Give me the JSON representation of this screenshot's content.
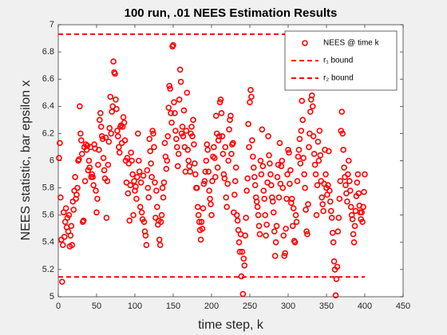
{
  "chart_data": {
    "type": "scatter",
    "title": "100 run, .01 NEES Estimation Results",
    "xlabel": "time step, k",
    "ylabel": "NEES statistic, bar epsilon x",
    "xlim": [
      0,
      450
    ],
    "xticks": [
      0,
      50,
      100,
      150,
      200,
      250,
      300,
      350,
      400,
      450
    ],
    "ylim": [
      5,
      7
    ],
    "yticks": [
      5,
      5.2,
      5.4,
      5.6,
      5.8,
      6,
      6.2,
      6.4,
      6.6,
      6.8,
      7
    ],
    "legend": "northeast",
    "series": [
      {
        "name": "NEES @ time k",
        "type": "scatter",
        "color": "#ff0000",
        "x": [
          1,
          2,
          3,
          4,
          5,
          6,
          7,
          8,
          9,
          10,
          11,
          12,
          13,
          14,
          15,
          16,
          17,
          18,
          19,
          20,
          21,
          22,
          23,
          24,
          25,
          26,
          27,
          28,
          29,
          30,
          31,
          32,
          33,
          34,
          35,
          36,
          37,
          38,
          39,
          40,
          41,
          42,
          43,
          44,
          45,
          46,
          47,
          48,
          49,
          50,
          51,
          52,
          53,
          54,
          55,
          56,
          57,
          58,
          59,
          60,
          61,
          62,
          63,
          64,
          65,
          66,
          67,
          68,
          69,
          70,
          71,
          72,
          73,
          74,
          75,
          76,
          77,
          78,
          79,
          80,
          81,
          82,
          83,
          84,
          85,
          86,
          87,
          88,
          89,
          90,
          91,
          92,
          93,
          94,
          95,
          96,
          97,
          98,
          99,
          100,
          101,
          102,
          103,
          104,
          105,
          106,
          107,
          108,
          109,
          110,
          111,
          112,
          113,
          114,
          115,
          116,
          117,
          118,
          119,
          120,
          121,
          122,
          123,
          124,
          125,
          126,
          127,
          128,
          129,
          130,
          131,
          132,
          133,
          134,
          135,
          136,
          137,
          138,
          139,
          140,
          141,
          142,
          143,
          144,
          145,
          146,
          147,
          148,
          149,
          150,
          151,
          152,
          153,
          154,
          155,
          156,
          157,
          158,
          159,
          160,
          161,
          162,
          163,
          164,
          165,
          166,
          167,
          168,
          169,
          170,
          171,
          172,
          173,
          174,
          175,
          176,
          177,
          178,
          179,
          180,
          181,
          182,
          183,
          184,
          185,
          186,
          187,
          188,
          189,
          190,
          191,
          192,
          193,
          194,
          195,
          196,
          197,
          198,
          199,
          200,
          201,
          202,
          203,
          204,
          205,
          206,
          207,
          208,
          209,
          210,
          211,
          212,
          213,
          214,
          215,
          216,
          217,
          218,
          219,
          220,
          221,
          222,
          223,
          224,
          225,
          226,
          227,
          228,
          229,
          230,
          231,
          232,
          233,
          234,
          235,
          236,
          237,
          238,
          239,
          240,
          241,
          242,
          243,
          244,
          245,
          246,
          247,
          248,
          249,
          250,
          251,
          252,
          253,
          254,
          255,
          256,
          257,
          258,
          259,
          260,
          261,
          262,
          263,
          264,
          265,
          266,
          267,
          268,
          269,
          270,
          271,
          272,
          273,
          274,
          275,
          276,
          277,
          278,
          279,
          280,
          281,
          282,
          283,
          284,
          285,
          286,
          287,
          288,
          289,
          290,
          291,
          292,
          293,
          294,
          295,
          296,
          297,
          298,
          299,
          300,
          301,
          302,
          303,
          304,
          305,
          306,
          307,
          308,
          309,
          310,
          311,
          312,
          313,
          314,
          315,
          316,
          317,
          318,
          319,
          320,
          321,
          322,
          323,
          324,
          325,
          326,
          327,
          328,
          329,
          330,
          331,
          332,
          333,
          334,
          335,
          336,
          337,
          338,
          339,
          340,
          341,
          342,
          343,
          344,
          345,
          346,
          347,
          348,
          349,
          350,
          351,
          352,
          353,
          354,
          355,
          356,
          357,
          358,
          359,
          360,
          361,
          362,
          363,
          364,
          365,
          366,
          367,
          368,
          369,
          370,
          371,
          372,
          373,
          374,
          375,
          376,
          377,
          378,
          379,
          380,
          381,
          382,
          383,
          384,
          385,
          386,
          387,
          388,
          389,
          390,
          391,
          392,
          393,
          394,
          395,
          396,
          397,
          398,
          399,
          400
        ],
        "values": [
          6.02,
          6.13,
          5.73,
          5.42,
          5.11,
          5.38,
          5.62,
          5.44,
          5.55,
          5.65,
          5.51,
          5.58,
          5.48,
          5.6,
          5.37,
          5.45,
          5.52,
          5.38,
          5.7,
          5.64,
          5.78,
          5.88,
          5.72,
          5.75,
          5.8,
          6.0,
          6.01,
          6.4,
          6.2,
          6.15,
          6.05,
          5.55,
          5.56,
          6.1,
          5.85,
          6.12,
          6.08,
          6.11,
          5.93,
          6.0,
          5.95,
          6.1,
          5.88,
          5.9,
          5.88,
          5.82,
          6.12,
          6.09,
          5.78,
          5.62,
          5.72,
          5.97,
          6.08,
          6.3,
          6.35,
          6.25,
          6.18,
          6.16,
          6.02,
          5.93,
          5.87,
          6.17,
          5.58,
          5.85,
          5.97,
          6.14,
          6.24,
          6.47,
          6.2,
          6.36,
          6.4,
          6.73,
          6.65,
          6.64,
          6.45,
          6.38,
          6.22,
          6.18,
          6.1,
          6.06,
          6.25,
          6.26,
          6.13,
          6.25,
          6.32,
          6.28,
          6.15,
          6.0,
          5.84,
          6.02,
          5.76,
          5.98,
          5.56,
          5.82,
          6.06,
          6.0,
          5.9,
          5.6,
          5.85,
          5.78,
          5.81,
          5.72,
          5.88,
          6.2,
          6.0,
          5.92,
          5.66,
          5.84,
          5.62,
          5.57,
          5.89,
          5.55,
          5.48,
          5.45,
          5.38,
          5.93,
          5.8,
          5.73,
          6.16,
          6.07,
          5.98,
          5.88,
          6.22,
          6.2,
          6.1,
          5.84,
          5.58,
          5.78,
          5.66,
          5.53,
          5.56,
          5.42,
          5.38,
          5.55,
          5.6,
          5.8,
          5.73,
          5.84,
          6.13,
          6.03,
          5.94,
          6.0,
          6.18,
          6.39,
          6.55,
          6.53,
          6.35,
          6.28,
          6.84,
          6.85,
          6.43,
          6.35,
          6.22,
          6.16,
          6.1,
          5.96,
          6.05,
          6.45,
          6.67,
          6.58,
          6.2,
          6.25,
          6.18,
          6.37,
          6.1,
          5.92,
          6.22,
          6.5,
          6.08,
          6.0,
          5.96,
          5.92,
          6.2,
          6.25,
          6.18,
          6.3,
          6.12,
          5.98,
          5.9,
          5.8,
          5.8,
          5.66,
          5.6,
          5.55,
          5.49,
          5.42,
          5.55,
          5.5,
          5.65,
          5.83,
          5.85,
          5.92,
          6.0,
          6.12,
          6.08,
          5.92,
          5.78,
          5.72,
          5.68,
          5.6,
          5.85,
          6.03,
          6.1,
          6.02,
          5.88,
          6.33,
          6.2,
          5.95,
          6.15,
          6.18,
          6.43,
          6.45,
          6.35,
          6.18,
          6.05,
          5.9,
          5.87,
          6.1,
          5.73,
          5.66,
          5.83,
          6.0,
          6.23,
          6.3,
          6.33,
          6.05,
          6.12,
          6.13,
          5.62,
          5.75,
          5.85,
          5.95,
          5.6,
          5.56,
          5.49,
          5.4,
          5.33,
          5.46,
          5.15,
          5.33,
          5.02,
          5.28,
          5.23,
          5.45,
          5.58,
          5.78,
          5.87,
          6.27,
          6.1,
          6.43,
          6.52,
          6.47,
          6.15,
          6.03,
          5.95,
          5.88,
          5.82,
          5.73,
          5.7,
          5.66,
          5.6,
          5.52,
          5.46,
          6.0,
          5.9,
          6.23,
          5.96,
          5.78,
          5.72,
          5.6,
          5.45,
          5.53,
          5.84,
          6.18,
          6.04,
          5.98,
          5.9,
          5.82,
          5.73,
          5.7,
          5.62,
          5.48,
          5.3,
          5.4,
          5.52,
          5.88,
          5.97,
          5.73,
          6.13,
          5.83,
          5.96,
          6.0,
          5.8,
          5.45,
          5.3,
          5.32,
          5.5,
          5.72,
          5.9,
          6.08,
          6.06,
          5.83,
          5.93,
          5.69,
          5.72,
          5.52,
          5.65,
          5.41,
          5.4,
          5.6,
          5.55,
          5.85,
          6.03,
          6.08,
          6.16,
          5.98,
          6.22,
          6.44,
          6.3,
          6.02,
          5.9,
          5.8,
          5.64,
          5.48,
          5.46,
          5.68,
          6.1,
          6.2,
          6.36,
          6.45,
          6.48,
          6.4,
          6.18,
          6.05,
          5.97,
          5.9,
          5.6,
          5.82,
          6.14,
          6.0,
          6.22,
          6.04,
          5.85,
          5.73,
          5.68,
          5.63,
          5.83,
          6.08,
          5.9,
          5.8,
          5.75,
          5.82,
          6.07,
          5.78,
          5.7,
          5.63,
          5.58,
          5.47,
          5.4,
          5.26,
          5.2,
          5.01,
          5.13,
          5.22,
          5.48,
          5.58,
          5.72,
          5.85,
          6.22,
          6.36,
          6.2,
          6.08,
          5.95,
          5.88,
          5.82,
          5.76,
          5.7,
          5.9,
          6.0,
          5.85,
          5.78,
          5.66,
          5.6,
          5.57,
          5.46,
          5.4,
          5.52,
          5.63,
          5.74,
          5.84,
          5.9,
          5.76,
          5.67,
          5.62,
          5.57,
          5.62,
          5.55,
          5.66,
          5.77,
          5.9
        ]
      },
      {
        "name": "r₁ bound",
        "type": "line",
        "color": "#ff0000",
        "x": [
          0,
          400
        ],
        "values": [
          6.93,
          6.93
        ]
      },
      {
        "name": "r₂ bound",
        "type": "line",
        "color": "#ff0000",
        "x": [
          0,
          400
        ],
        "values": [
          5.145,
          5.145
        ]
      }
    ]
  }
}
